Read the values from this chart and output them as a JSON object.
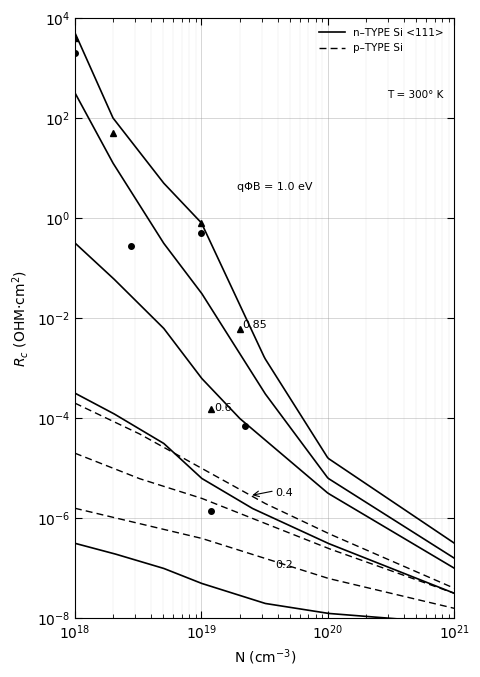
{
  "xlabel": "N (cm⁻³)",
  "ylabel": "R_c (OHM·cm²)",
  "xlim": [
    1e+18,
    1e+21
  ],
  "ylim": [
    1e-08,
    10000.0
  ],
  "legend_text": [
    "n – TYPE  Si <111>",
    "p – TYPE  Si",
    "T = 300° K"
  ],
  "n_phi_values": [
    1.0,
    0.85,
    0.6,
    0.4,
    0.2
  ],
  "p_phi_values": [
    0.6,
    0.4,
    0.2
  ],
  "curve_labels": {
    "1.0": {
      "text": "qΦB = 1.0 eV",
      "log10x": 19.28,
      "log10y": 0.55
    },
    "0.85": {
      "text": "0.85",
      "log10x": 19.32,
      "log10y": -2.2
    },
    "0.6": {
      "text": "0.6",
      "log10x": 19.1,
      "log10y": -3.85
    },
    "0.4": {
      "text": "0.4",
      "log10x": 19.58,
      "log10y": -5.55
    },
    "0.2": {
      "text": "0.2",
      "log10x": 19.58,
      "log10y": -7.0
    }
  },
  "triangles": [
    [
      1e+18,
      4000
    ],
    [
      2e+18,
      50
    ],
    [
      1e+19,
      0.8
    ],
    [
      2e+19,
      0.006
    ],
    [
      1.2e+19,
      0.00015
    ]
  ],
  "circles": [
    [
      1e+18,
      2000
    ],
    [
      2.8e+18,
      0.28
    ],
    [
      1e+19,
      0.5
    ],
    [
      2.2e+19,
      7e-05
    ],
    [
      1.2e+19,
      1.4e-06
    ]
  ],
  "kT": 0.026,
  "E00_coeff": 0.01855,
  "n_preexp_A": 1.154,
  "n_preexp_B": 2.981,
  "n_preexp_C": 2.546,
  "p_slope": -1.4,
  "p_intercepts": {
    "0.6": -17.5,
    "0.4": -20.5,
    "0.2": -23.8
  },
  "background": "#ffffff",
  "linecolor": "#000000"
}
